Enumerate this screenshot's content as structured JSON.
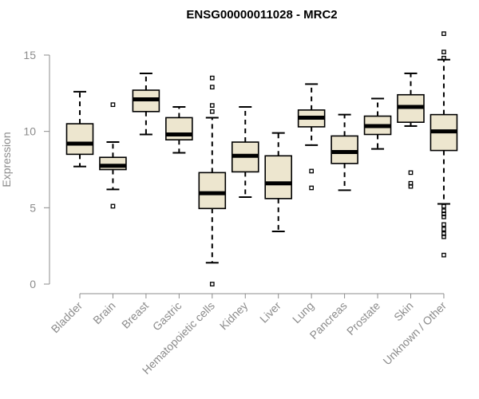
{
  "chart_data": {
    "type": "boxplot",
    "title": "ENSG00000011028 - MRC2",
    "ylabel": "Expression",
    "xlabel": "",
    "ylim": [
      0,
      16.5
    ],
    "yticks": [
      0,
      5,
      10,
      15
    ],
    "colors": {
      "box_fill": "#ede6cf",
      "stroke": "#000000",
      "axis": "#8c8c8c"
    },
    "categories": [
      "Bladder",
      "Brain",
      "Breast",
      "Gastric",
      "Hematopoietic cells",
      "Kidney",
      "Liver",
      "Lung",
      "Pancreas",
      "Prostate",
      "Skin",
      "Unknown / Other"
    ],
    "boxes": [
      {
        "q1": 8.5,
        "median": 9.2,
        "q3": 10.5,
        "whisker_low": 7.7,
        "whisker_high": 12.6,
        "outliers": []
      },
      {
        "q1": 7.5,
        "median": 7.75,
        "q3": 8.3,
        "whisker_low": 6.2,
        "whisker_high": 9.3,
        "outliers": [
          11.75,
          5.1
        ]
      },
      {
        "q1": 11.3,
        "median": 12.1,
        "q3": 12.7,
        "whisker_low": 9.8,
        "whisker_high": 13.8,
        "outliers": []
      },
      {
        "q1": 9.45,
        "median": 9.8,
        "q3": 10.9,
        "whisker_low": 8.6,
        "whisker_high": 11.6,
        "outliers": []
      },
      {
        "q1": 4.95,
        "median": 5.95,
        "q3": 7.3,
        "whisker_low": 1.4,
        "whisker_high": 10.9,
        "outliers": [
          13.5,
          12.9,
          11.7,
          11.3,
          0.0
        ]
      },
      {
        "q1": 7.35,
        "median": 8.4,
        "q3": 9.3,
        "whisker_low": 5.7,
        "whisker_high": 11.6,
        "outliers": []
      },
      {
        "q1": 5.6,
        "median": 6.6,
        "q3": 8.4,
        "whisker_low": 3.45,
        "whisker_high": 9.9,
        "outliers": []
      },
      {
        "q1": 10.3,
        "median": 10.9,
        "q3": 11.4,
        "whisker_low": 9.1,
        "whisker_high": 13.1,
        "outliers": [
          7.4,
          6.3
        ]
      },
      {
        "q1": 7.9,
        "median": 8.65,
        "q3": 9.7,
        "whisker_low": 6.15,
        "whisker_high": 11.1,
        "outliers": []
      },
      {
        "q1": 9.8,
        "median": 10.35,
        "q3": 11.0,
        "whisker_low": 8.85,
        "whisker_high": 12.15,
        "outliers": []
      },
      {
        "q1": 10.6,
        "median": 11.6,
        "q3": 12.4,
        "whisker_low": 10.35,
        "whisker_high": 13.8,
        "outliers": [
          7.3,
          6.6,
          6.4
        ]
      },
      {
        "q1": 8.75,
        "median": 10.0,
        "q3": 11.1,
        "whisker_low": 5.25,
        "whisker_high": 14.7,
        "outliers": [
          16.4,
          15.2,
          14.8,
          5.1,
          4.8,
          4.6,
          4.4,
          3.9,
          3.6,
          3.3,
          3.1,
          1.9
        ]
      }
    ]
  }
}
